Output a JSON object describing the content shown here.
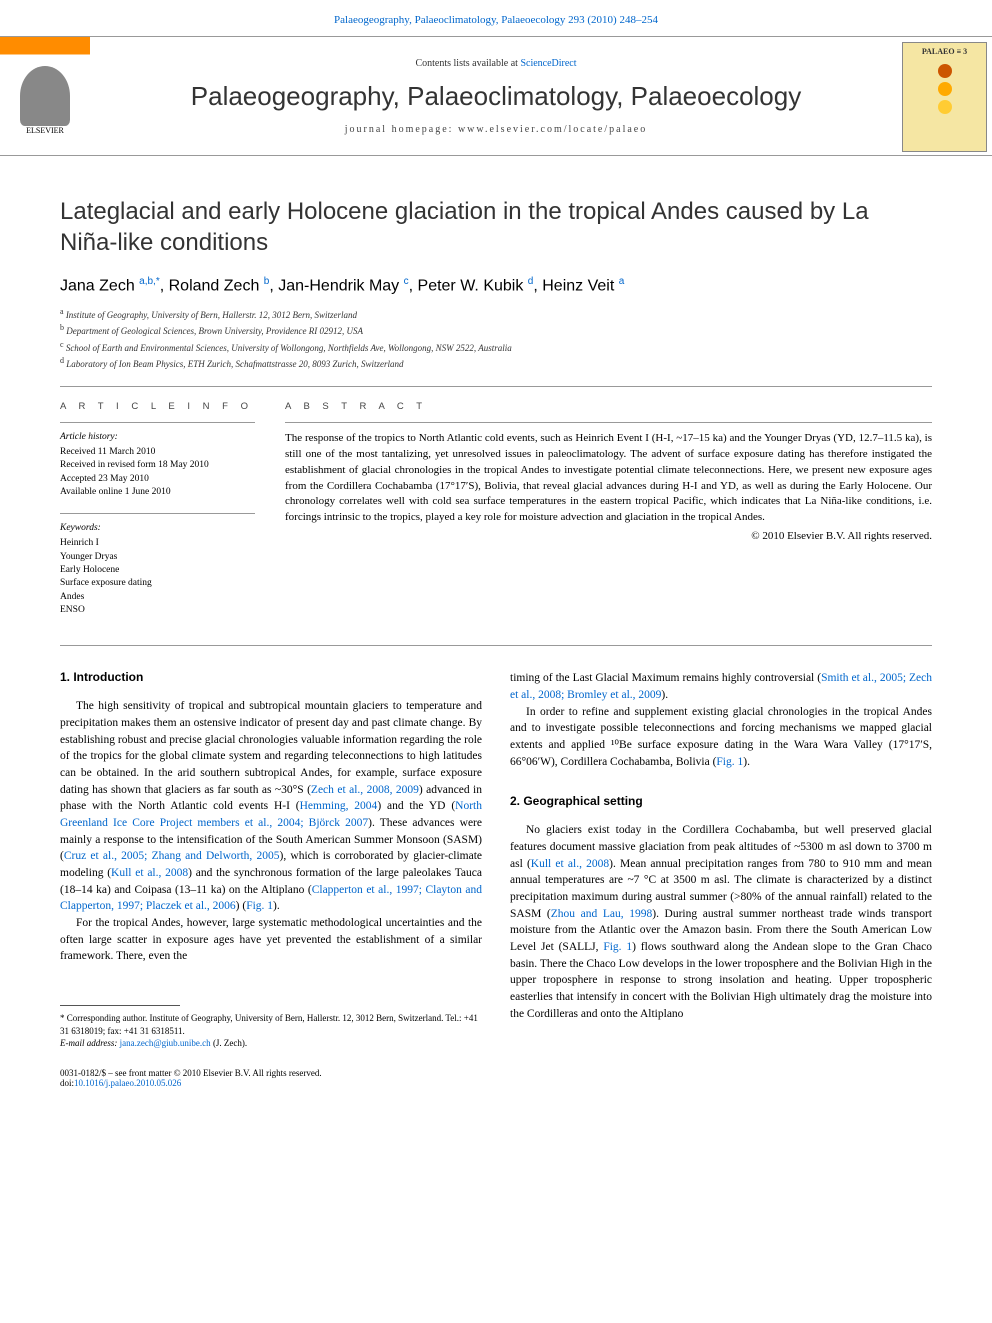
{
  "top_citation": "Palaeogeography, Palaeoclimatology, Palaeoecology 293 (2010) 248–254",
  "header": {
    "contents_prefix": "Contents lists available at ",
    "contents_link": "ScienceDirect",
    "journal_title": "Palaeogeography, Palaeoclimatology, Palaeoecology",
    "homepage_label": "journal homepage: www.elsevier.com/locate/palaeo",
    "elsevier": "ELSEVIER",
    "cover_label": "PALAEO ≡ 3",
    "cover_dots": [
      "#cc5500",
      "#ffaa00",
      "#ffcc33"
    ]
  },
  "article": {
    "title": "Lateglacial and early Holocene glaciation in the tropical Andes caused by La Niña-like conditions",
    "authors_html": "Jana Zech <sup>a,b,*</sup>, Roland Zech <sup>b</sup>, Jan-Hendrik May <sup>c</sup>, Peter W. Kubik <sup>d</sup>, Heinz Veit <sup>a</sup>",
    "affiliations": [
      {
        "sup": "a",
        "text": "Institute of Geography, University of Bern, Hallerstr. 12, 3012 Bern, Switzerland"
      },
      {
        "sup": "b",
        "text": "Department of Geological Sciences, Brown University, Providence RI 02912, USA"
      },
      {
        "sup": "c",
        "text": "School of Earth and Environmental Sciences, University of Wollongong, Northfields Ave, Wollongong, NSW 2522, Australia"
      },
      {
        "sup": "d",
        "text": "Laboratory of Ion Beam Physics, ETH Zurich, Schafmattstrasse 20, 8093 Zurich, Switzerland"
      }
    ]
  },
  "info": {
    "heading": "A R T I C L E   I N F O",
    "history_label": "Article history:",
    "history": [
      "Received 11 March 2010",
      "Received in revised form 18 May 2010",
      "Accepted 23 May 2010",
      "Available online 1 June 2010"
    ],
    "keywords_label": "Keywords:",
    "keywords": [
      "Heinrich I",
      "Younger Dryas",
      "Early Holocene",
      "Surface exposure dating",
      "Andes",
      "ENSO"
    ]
  },
  "abstract": {
    "heading": "A B S T R A C T",
    "text": "The response of the tropics to North Atlantic cold events, such as Heinrich Event I (H-I, ~17–15 ka) and the Younger Dryas (YD, 12.7–11.5 ka), is still one of the most tantalizing, yet unresolved issues in paleoclimatology. The advent of surface exposure dating has therefore instigated the establishment of glacial chronologies in the tropical Andes to investigate potential climate teleconnections. Here, we present new exposure ages from the Cordillera Cochabamba (17°17′S), Bolivia, that reveal glacial advances during H-I and YD, as well as during the Early Holocene. Our chronology correlates well with cold sea surface temperatures in the eastern tropical Pacific, which indicates that La Niña-like conditions, i.e. forcings intrinsic to the tropics, played a key role for moisture advection and glaciation in the tropical Andes.",
    "copyright": "© 2010 Elsevier B.V. All rights reserved."
  },
  "sections": {
    "intro_heading": "1. Introduction",
    "intro_p1_pre": "The high sensitivity of tropical and subtropical mountain glaciers to temperature and precipitation makes them an ostensive indicator of present day and past climate change. By establishing robust and precise glacial chronologies valuable information regarding the role of the tropics for the global climate system and regarding teleconnections to high latitudes can be obtained. In the arid southern subtropical Andes, for example, surface exposure dating has shown that glaciers as far south as ~30°S (",
    "ref_zech": "Zech et al., 2008, 2009",
    "intro_p1_mid1": ") advanced in phase with the North Atlantic cold events H-I (",
    "ref_hemming": "Hemming, 2004",
    "intro_p1_mid2": ") and the YD (",
    "ref_ngrip": "North Greenland Ice Core Project members et al., 2004; Björck 2007",
    "intro_p1_mid3": "). These advances were mainly a response to the intensification of the South American Summer Monsoon (SASM) (",
    "ref_cruz": "Cruz et al., 2005; Zhang and Delworth, 2005",
    "intro_p1_mid4": "), which is corroborated by glacier-climate modeling (",
    "ref_kull": "Kull et al., 2008",
    "intro_p1_mid5": ") and the synchronous formation of the large paleolakes Tauca (18–14 ka) and Coipasa (13–11 ka) on the Altiplano (",
    "ref_clapperton": "Clapperton et al., 1997; Clayton and Clapperton, 1997; Placzek et al., 2006",
    "intro_p1_mid6": ") (",
    "ref_fig1a": "Fig. 1",
    "intro_p1_end": ").",
    "intro_p2": "For the tropical Andes, however, large systematic methodological uncertainties and the often large scatter in exposure ages have yet prevented the establishment of a similar framework. There, even the",
    "col2_p1_pre": "timing of the Last Glacial Maximum remains highly controversial (",
    "ref_smith": "Smith et al., 2005; Zech et al., 2008; Bromley et al., 2009",
    "col2_p1_end": ").",
    "col2_p2_pre": "In order to refine and supplement existing glacial chronologies in the tropical Andes and to investigate possible teleconnections and forcing mechanisms we mapped glacial extents and applied ",
    "be10": "¹⁰Be",
    "col2_p2_mid": " surface exposure dating in the Wara Wara Valley (17°17′S, 66°06′W), Cordillera Cochabamba, Bolivia (",
    "ref_fig1b": "Fig. 1",
    "col2_p2_end": ").",
    "geo_heading": "2. Geographical setting",
    "geo_p1_pre": "No glaciers exist today in the Cordillera Cochabamba, but well preserved glacial features document massive glaciation from peak altitudes of ~5300 m asl down to 3700 m asl (",
    "ref_kull2": "Kull et al., 2008",
    "geo_p1_mid1": "). Mean annual precipitation ranges from 780 to 910 mm and mean annual temperatures are ~7 °C at 3500 m asl. The climate is characterized by a distinct precipitation maximum during austral summer (>80% of the annual rainfall) related to the SASM (",
    "ref_zhou": "Zhou and Lau, 1998",
    "geo_p1_mid2": "). During austral summer northeast trade winds transport moisture from the Atlantic over the Amazon basin. From there the South American Low Level Jet (SALLJ, ",
    "ref_fig1c": "Fig. 1",
    "geo_p1_end": ") flows southward along the Andean slope to the Gran Chaco basin. There the Chaco Low develops in the lower troposphere and the Bolivian High in the upper troposphere in response to strong insolation and heating. Upper tropospheric easterlies that intensify in concert with the Bolivian High ultimately drag the moisture into the Cordilleras and onto the Altiplano"
  },
  "footer": {
    "corresponding": "* Corresponding author. Institute of Geography, University of Bern, Hallerstr. 12, 3012 Bern, Switzerland. Tel.: +41 31 6318019; fax: +41 31 6318511.",
    "email_label": "E-mail address: ",
    "email": "jana.zech@giub.unibe.ch",
    "email_suffix": " (J. Zech).",
    "front_matter": "0031-0182/$ – see front matter © 2010 Elsevier B.V. All rights reserved.",
    "doi_label": "doi:",
    "doi": "10.1016/j.palaeo.2010.05.026"
  },
  "colors": {
    "link": "#0066cc",
    "text": "#000000",
    "heading": "#333333",
    "elsevier_orange": "#ff8c00",
    "cover_bg": "#f5e6a3"
  }
}
